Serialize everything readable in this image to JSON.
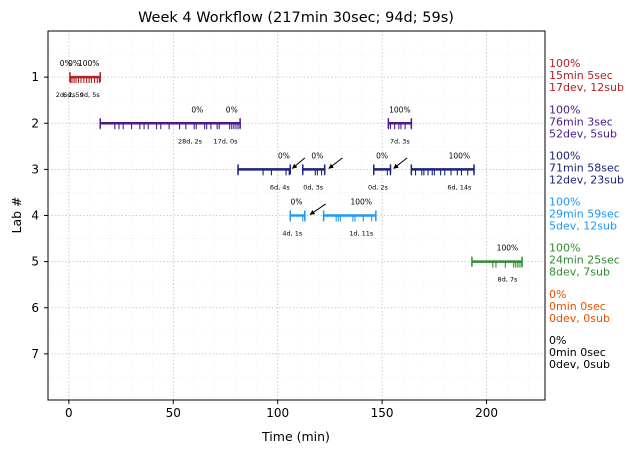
{
  "chart_data": {
    "type": "timeline",
    "title": "Week 4 Workflow (217min 30sec; 94d; 59s)",
    "xlabel": "Time (min)",
    "ylabel": "Lab #",
    "xlim": [
      -10,
      228
    ],
    "ylim": [
      8,
      0
    ],
    "xticks": [
      0,
      50,
      100,
      150,
      200
    ],
    "yticks": [
      1,
      2,
      3,
      4,
      5,
      6,
      7
    ],
    "grid": true,
    "labs": [
      {
        "lab": 1,
        "color": "#b22222",
        "summary": [
          "100%",
          "15min 5sec",
          "17dev, 12sub"
        ],
        "segments": [
          [
            0.5,
            15.0
          ]
        ],
        "commits": [
          0.8,
          1.5,
          2.5,
          3.4,
          4.6,
          5.8,
          7.2,
          8.5,
          9.7,
          10.8,
          12.3,
          13.6,
          14.6
        ],
        "pct_labels": [
          {
            "x": -1.5,
            "text": "0%"
          },
          {
            "x": 2.5,
            "text": "0%"
          },
          {
            "x": 9.5,
            "text": "100%"
          }
        ],
        "dur_labels": [
          {
            "x": -1.5,
            "text": "2d, 2s"
          },
          {
            "x": 2.0,
            "text": "6d, 5s"
          },
          {
            "x": 10.0,
            "text": "9d, 5s"
          }
        ],
        "arrows": []
      },
      {
        "lab": 2,
        "color": "#4b1a8c",
        "summary": [
          "100%",
          "76min 3sec",
          "52dev, 5sub"
        ],
        "segments": [
          [
            15.0,
            82.0
          ],
          [
            153.0,
            164.0
          ]
        ],
        "commits": [
          15.0,
          22.0,
          24.0,
          26.0,
          30.0,
          34.0,
          36.0,
          38.0,
          42.0,
          44.0,
          48.0,
          53.0,
          56.0,
          60.0,
          61.0,
          65.0,
          66.0,
          68.0,
          71.0,
          72.0,
          77.0,
          78.0,
          79.0,
          80.0,
          81.0,
          82.0,
          153.0,
          154.0,
          156.0,
          158.0,
          159.0,
          161.0,
          164.0
        ],
        "pct_labels": [
          {
            "x": 61.5,
            "text": "0%"
          },
          {
            "x": 78.0,
            "text": "0%"
          },
          {
            "x": 158.5,
            "text": "100%"
          }
        ],
        "dur_labels": [
          {
            "x": 58.0,
            "text": "28d, 2s"
          },
          {
            "x": 75.0,
            "text": "17d, 0s"
          },
          {
            "x": 158.5,
            "text": "7d, 3s"
          }
        ],
        "arrows": []
      },
      {
        "lab": 3,
        "color": "#1a237e",
        "summary": [
          "100%",
          "71min 58sec",
          "12dev, 23sub"
        ],
        "segments": [
          [
            81.0,
            106.0
          ],
          [
            112.0,
            122.5
          ],
          [
            146.0,
            154.0
          ],
          [
            164.0,
            194.0
          ]
        ],
        "commits": [
          81.0,
          93.0,
          97.0,
          104.0,
          105.5,
          112.0,
          118.0,
          119.0,
          121.0,
          122.5,
          146.0,
          152.5,
          154.0,
          164.0,
          166.0,
          169.0,
          170.0,
          172.0,
          174.0,
          175.0,
          178.0,
          180.0,
          183.0,
          186.0,
          188.0,
          191.0,
          194.0
        ],
        "pct_labels": [
          {
            "x": 103.0,
            "text": "0%"
          },
          {
            "x": 119.0,
            "text": "0%"
          },
          {
            "x": 150.0,
            "text": "0%"
          },
          {
            "x": 187.0,
            "text": "100%"
          }
        ],
        "dur_labels": [
          {
            "x": 101.0,
            "text": "6d, 4s"
          },
          {
            "x": 117.0,
            "text": "0d, 3s"
          },
          {
            "x": 148.0,
            "text": "0d, 2s"
          },
          {
            "x": 187.0,
            "text": "6d, 14s"
          }
        ],
        "arrows": [
          {
            "from": [
              113.0,
              2.75
            ],
            "to": [
              107.0,
              2.98
            ]
          },
          {
            "from": [
              131.0,
              2.75
            ],
            "to": [
              124.5,
              2.98
            ]
          },
          {
            "from": [
              162.0,
              2.75
            ],
            "to": [
              155.5,
              2.98
            ]
          }
        ]
      },
      {
        "lab": 4,
        "color": "#2196f3",
        "summary": [
          "100%",
          "29min 59sec",
          "5dev, 12sub"
        ],
        "segments": [
          [
            106.0,
            113.0
          ],
          [
            122.0,
            147.0
          ]
        ],
        "commits": [
          106.0,
          112.0,
          113.0,
          122.0,
          128.0,
          129.0,
          130.0,
          136.0,
          137.0,
          141.0,
          145.0,
          147.0
        ],
        "pct_labels": [
          {
            "x": 109.0,
            "text": "0%"
          },
          {
            "x": 140.0,
            "text": "100%"
          }
        ],
        "dur_labels": [
          {
            "x": 107.0,
            "text": "4d, 1s"
          },
          {
            "x": 140.0,
            "text": "1d, 11s"
          }
        ],
        "arrows": [
          {
            "from": [
              123.0,
              3.75
            ],
            "to": [
              115.5,
              3.98
            ]
          }
        ]
      },
      {
        "lab": 5,
        "color": "#2e8b2e",
        "summary": [
          "100%",
          "24min 25sec",
          "8dev, 7sub"
        ],
        "segments": [
          [
            193.0,
            217.0
          ]
        ],
        "commits": [
          203.0,
          204.5,
          209.0,
          213.0,
          214.0,
          215.0,
          216.0,
          217.0
        ],
        "pct_labels": [
          {
            "x": 210.0,
            "text": "100%"
          }
        ],
        "dur_labels": [
          {
            "x": 210.0,
            "text": "8d, 7s"
          }
        ],
        "arrows": []
      },
      {
        "lab": 6,
        "color": "#e65100",
        "summary": [
          "0%",
          "0min 0sec",
          "0dev, 0sub"
        ],
        "segments": [],
        "commits": [],
        "pct_labels": [],
        "dur_labels": [],
        "arrows": []
      },
      {
        "lab": 7,
        "color": "#000000",
        "summary": [
          "0%",
          "0min 0sec",
          "0dev, 0sub"
        ],
        "segments": [],
        "commits": [],
        "pct_labels": [],
        "dur_labels": [],
        "arrows": []
      }
    ]
  }
}
